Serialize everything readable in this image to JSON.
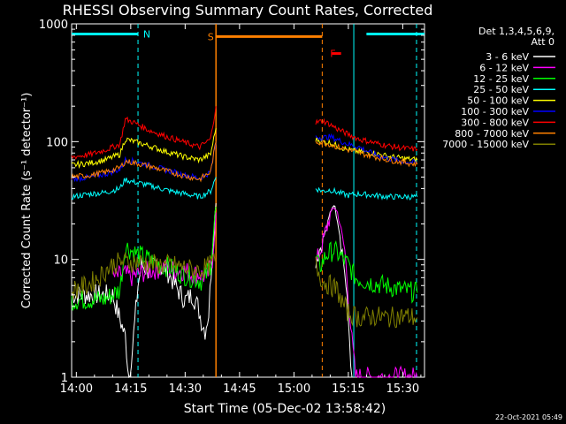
{
  "chart_data": {
    "type": "line",
    "title": "RHESSI Observing Summary Count Rates, Corrected",
    "xlabel": "Start Time (05-Dec-02 13:58:42)",
    "ylabel": "Corrected Count Rate (s⁻¹ detector⁻¹)",
    "ylim": [
      1,
      1000
    ],
    "yscale": "log",
    "xlim_minutes_since_14_00": [
      -1.3,
      96
    ],
    "x_ticks": [
      {
        "label": "14:00",
        "min": 0
      },
      {
        "label": "14:15",
        "min": 15
      },
      {
        "label": "14:30",
        "min": 30
      },
      {
        "label": "14:45",
        "min": 45
      },
      {
        "label": "15:00",
        "min": 60
      },
      {
        "label": "15:15",
        "min": 75
      },
      {
        "label": "15:30",
        "min": 90
      }
    ],
    "y_ticks": [
      {
        "label": "1",
        "v": 1
      },
      {
        "label": "10",
        "v": 10
      },
      {
        "label": "100",
        "v": 100
      },
      {
        "label": "1000",
        "v": 1000
      }
    ],
    "legend_header": [
      "Det 1,3,4,5,6,9,",
      "Att 0"
    ],
    "timestamp": "22-Oct-2021 05:49",
    "markers": [
      {
        "label": "N",
        "color": "#00ffff",
        "line_min": 17,
        "bar": [
          [
            -1.3,
            17
          ],
          [
            80,
            96
          ]
        ],
        "y": 820
      },
      {
        "label": "S",
        "color": "#ff8000",
        "line_min": 38.5,
        "bar": [
          [
            38.5,
            67.8
          ]
        ],
        "y": 780
      },
      {
        "label": "F",
        "color": "#ff0000",
        "line_min": 67.8,
        "bar": [
          [
            70.5,
            73
          ]
        ],
        "y": 560
      }
    ],
    "cyan_dashed_min": [
      17,
      93.8
    ],
    "cyan_solid_min": [
      76.5
    ],
    "orange_solid_min": [
      38.5
    ],
    "orange_dashed_min": [
      67.8
    ],
    "series": [
      {
        "name": "3 - 6 keV",
        "color": "#ffffff",
        "x": [
          -1.3,
          10,
          13.5,
          14.5,
          15.5,
          17,
          18,
          20,
          22,
          25,
          28,
          30,
          32,
          33.5,
          34.5,
          35.5,
          36.5,
          37.5,
          38.5,
          null,
          66,
          67,
          68,
          69,
          70,
          71,
          72,
          73,
          74,
          75,
          76
        ],
        "y": [
          5,
          5,
          2.2,
          1,
          1.8,
          6,
          9,
          8,
          9,
          8,
          5.5,
          4.5,
          5,
          4,
          3,
          2.5,
          3.5,
          12,
          30,
          null,
          10,
          12,
          15,
          18,
          25,
          30,
          22,
          14,
          8,
          3,
          1
        ]
      },
      {
        "name": "6 - 12 keV",
        "color": "#ff00ff",
        "x": [
          10,
          13.5,
          15,
          17,
          20,
          24,
          28,
          30,
          32,
          34,
          36,
          37.5,
          38.5,
          null,
          66,
          68,
          70,
          71,
          72,
          73,
          74,
          75,
          76,
          77,
          80,
          86,
          92,
          94
        ],
        "y": [
          7,
          7.5,
          7,
          7.5,
          8,
          8.5,
          8,
          8,
          7.5,
          7.5,
          7,
          10,
          25,
          null,
          9,
          14,
          24,
          28,
          25,
          18,
          12,
          5,
          2,
          1,
          1,
          1,
          1,
          1
        ]
      },
      {
        "name": "12 - 25 keV",
        "color": "#00ff00",
        "x": [
          -1.3,
          8,
          12,
          13.5,
          15,
          17,
          20,
          23,
          26,
          29,
          32,
          35,
          37,
          38.5,
          null,
          66,
          67,
          69,
          71,
          73,
          75,
          77,
          80,
          85,
          90,
          94
        ],
        "y": [
          4.5,
          4.6,
          5.5,
          13,
          12,
          11,
          10,
          9,
          8.5,
          7.5,
          7,
          6.5,
          9,
          28,
          null,
          10,
          8.5,
          11,
          12,
          10.5,
          9,
          7,
          6.5,
          6,
          5.5,
          5.2
        ]
      },
      {
        "name": "25 - 50 keV",
        "color": "#00ffff",
        "x": [
          -1.3,
          4,
          8,
          12,
          13.5,
          15,
          18,
          22,
          26,
          30,
          34,
          37,
          38.5,
          null,
          66,
          68,
          70,
          72,
          75,
          78,
          82,
          86,
          90,
          94
        ],
        "y": [
          34,
          36,
          37,
          40,
          48,
          46,
          44,
          41,
          38,
          36,
          34,
          38,
          50,
          null,
          40,
          38,
          39,
          37,
          35,
          36,
          35,
          34,
          34,
          34
        ]
      },
      {
        "name": "50 - 100 keV",
        "color": "#ffff00",
        "x": [
          -1.3,
          4,
          8,
          12,
          13.5,
          16,
          20,
          25,
          30,
          34,
          37,
          38.5,
          null,
          66,
          68,
          70,
          72,
          75,
          78,
          82,
          86,
          90,
          94
        ],
        "y": [
          63,
          66,
          70,
          78,
          105,
          100,
          92,
          82,
          74,
          70,
          78,
          130,
          null,
          105,
          100,
          98,
          92,
          85,
          82,
          80,
          75,
          72,
          70
        ]
      },
      {
        "name": "100 - 300 keV",
        "color": "#0000ff",
        "x": [
          -1.3,
          4,
          8,
          12,
          13.5,
          16,
          20,
          25,
          30,
          34,
          37,
          38.5,
          null,
          66,
          68,
          70,
          72,
          75,
          78,
          82,
          86,
          90,
          94
        ],
        "y": [
          48,
          50,
          53,
          58,
          70,
          68,
          63,
          57,
          52,
          49,
          55,
          100,
          null,
          110,
          108,
          110,
          104,
          95,
          90,
          78,
          72,
          68,
          66
        ]
      },
      {
        "name": "300 - 800 keV",
        "color": "#ff0000",
        "x": [
          -1.3,
          4,
          8,
          12,
          13.5,
          16,
          20,
          25,
          30,
          34,
          37,
          38.5,
          null,
          66,
          68,
          70,
          72,
          75,
          78,
          82,
          86,
          90,
          94
        ],
        "y": [
          74,
          78,
          85,
          95,
          155,
          145,
          125,
          110,
          98,
          90,
          105,
          200,
          null,
          145,
          150,
          140,
          128,
          115,
          105,
          98,
          92,
          88,
          86
        ]
      },
      {
        "name": "800 - 7000 keV",
        "color": "#ff8000",
        "x": [
          -1.3,
          4,
          8,
          12,
          13.5,
          16,
          20,
          25,
          30,
          34,
          37,
          38.5,
          null,
          66,
          68,
          70,
          72,
          75,
          78,
          82,
          86,
          90,
          94
        ],
        "y": [
          50,
          52,
          55,
          60,
          68,
          66,
          62,
          56,
          51,
          48,
          55,
          100,
          null,
          100,
          98,
          95,
          90,
          85,
          80,
          75,
          70,
          67,
          64
        ]
      },
      {
        "name": "7000 - 15000 keV",
        "color": "#808000",
        "x": [
          -1.3,
          3,
          6,
          8,
          10,
          12,
          15,
          18,
          22,
          26,
          30,
          33,
          36,
          38.5,
          null,
          66,
          68,
          70,
          72,
          73,
          75,
          78,
          82,
          86,
          90,
          94
        ],
        "y": [
          5.5,
          6,
          7,
          8,
          9,
          9.5,
          9.5,
          9.5,
          9,
          9,
          8.5,
          8,
          8.5,
          10,
          null,
          9,
          6.5,
          6,
          5.5,
          4.5,
          3.5,
          3.2,
          3.3,
          3.2,
          3.3,
          3.2
        ]
      }
    ]
  }
}
